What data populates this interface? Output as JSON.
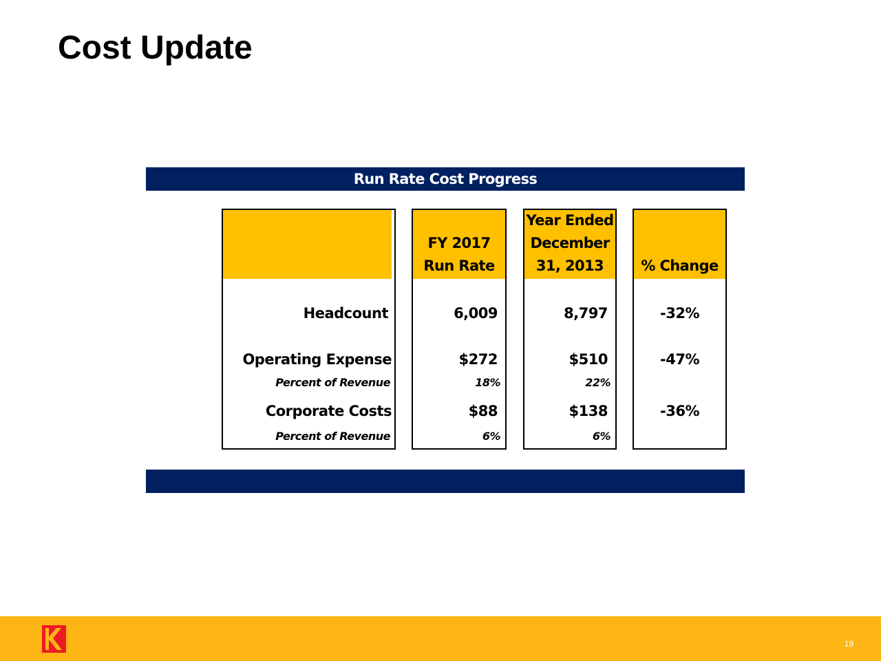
{
  "slide": {
    "title": "Cost Update",
    "page_number": "19"
  },
  "table": {
    "title": "Run Rate Cost Progress",
    "headers": {
      "fy2017": [
        "FY 2017",
        "Run Rate"
      ],
      "fy2013": [
        "Year Ended",
        "December",
        "31, 2013"
      ],
      "change": [
        "% Change"
      ]
    },
    "rows": [
      {
        "label": "Headcount",
        "fy2017": "6,009",
        "fy2013": "8,797",
        "change": "-32%"
      },
      {
        "label": "Operating Expense",
        "fy2017": "$272",
        "fy2013": "$510",
        "change": "-47%"
      },
      {
        "label": "Percent of Revenue",
        "fy2017": "18%",
        "fy2013": "22%",
        "change": ""
      },
      {
        "label": "Corporate Costs",
        "fy2017": "$88",
        "fy2013": "$138",
        "change": "-36%"
      },
      {
        "label": "Percent of Revenue",
        "fy2017": "6%",
        "fy2013": "6%",
        "change": ""
      }
    ]
  },
  "colors": {
    "navy": "#002060",
    "header_gold": "#FFC000",
    "footer_gold": "#FDB515",
    "logo_red": "#ED1C24"
  },
  "icons": {
    "logo": "kodak-logo-icon"
  }
}
